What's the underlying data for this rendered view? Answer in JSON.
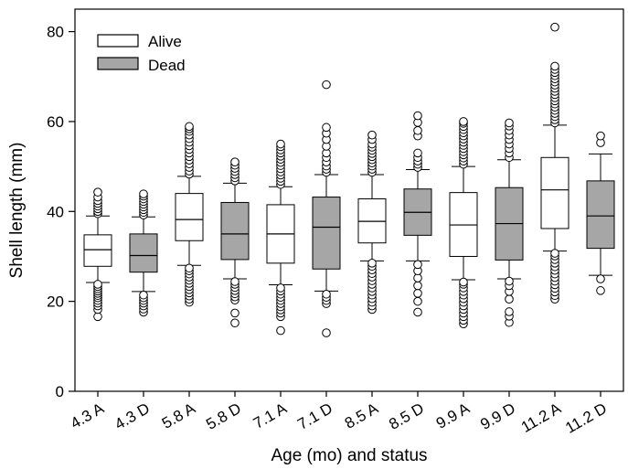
{
  "chart_data": {
    "type": "boxplot",
    "xlabel": "Age (mo) and status",
    "ylabel": "Shell length (mm)",
    "ylim": [
      0,
      85
    ],
    "yticks": [
      0,
      20,
      40,
      60,
      80
    ],
    "grid": false,
    "legend": {
      "placement": "top-left",
      "entries": [
        {
          "label": "Alive",
          "fill": "#ffffff"
        },
        {
          "label": "Dead",
          "fill": "#a6a6a6"
        }
      ]
    },
    "categories": [
      "4.3 A",
      "4.3 D",
      "5.8 A",
      "5.8 D",
      "7.1 A",
      "7.1 D",
      "8.5 A",
      "8.5 D",
      "9.9 A",
      "9.9 D",
      "11.2 A",
      "11.2 D"
    ],
    "boxes": [
      {
        "status": "Alive",
        "whisker_low": 24.2,
        "q1": 27.8,
        "median": 31.5,
        "q3": 34.8,
        "whisker_high": 39.0,
        "outliers": [
          16.6,
          18.2,
          19.0,
          19.6,
          20.2,
          20.8,
          21.3,
          21.8,
          22.3,
          22.8,
          23.3,
          23.8,
          39.5,
          40.0,
          40.6,
          41.2,
          41.8,
          42.4,
          43.2,
          44.3
        ]
      },
      {
        "status": "Dead",
        "whisker_low": 22.2,
        "q1": 26.5,
        "median": 30.2,
        "q3": 35.0,
        "whisker_high": 38.8,
        "outliers": [
          17.6,
          18.3,
          19.0,
          19.6,
          20.2,
          20.8,
          21.4,
          39.2,
          39.8,
          40.4,
          41.0,
          41.6,
          42.2,
          42.8,
          43.4,
          43.9
        ]
      },
      {
        "status": "Alive",
        "whisker_low": 28.0,
        "q1": 33.5,
        "median": 38.2,
        "q3": 44.0,
        "whisker_high": 47.8,
        "outliers": [
          19.8,
          20.5,
          21.2,
          21.9,
          22.6,
          23.3,
          24.0,
          24.7,
          25.4,
          26.1,
          26.8,
          27.4,
          48.3,
          49.0,
          49.8,
          50.6,
          51.4,
          52.2,
          53.0,
          53.8,
          54.6,
          55.4,
          56.2,
          57.0,
          57.8,
          58.4,
          58.9
        ]
      },
      {
        "status": "Dead",
        "whisker_low": 25.0,
        "q1": 29.3,
        "median": 35.0,
        "q3": 42.0,
        "whisker_high": 46.3,
        "outliers": [
          15.2,
          17.4,
          20.3,
          21.0,
          21.7,
          22.4,
          23.1,
          23.8,
          24.4,
          46.8,
          47.5,
          48.2,
          48.9,
          49.6,
          50.3,
          51.0
        ]
      },
      {
        "status": "Alive",
        "whisker_low": 23.7,
        "q1": 28.5,
        "median": 35.0,
        "q3": 41.5,
        "whisker_high": 45.5,
        "outliers": [
          13.5,
          16.6,
          17.4,
          18.1,
          18.8,
          19.5,
          20.2,
          20.9,
          21.6,
          22.3,
          23.0,
          46.0,
          46.7,
          47.4,
          48.1,
          48.8,
          49.5,
          50.2,
          50.9,
          51.6,
          52.3,
          53.0,
          53.7,
          54.4,
          55.0
        ]
      },
      {
        "status": "Dead",
        "whisker_low": 22.3,
        "q1": 27.2,
        "median": 36.5,
        "q3": 43.2,
        "whisker_high": 48.2,
        "outliers": [
          13.0,
          19.5,
          20.2,
          20.9,
          21.6,
          48.7,
          49.4,
          50.1,
          51.0,
          52.0,
          53.0,
          54.5,
          56.0,
          57.4,
          58.7,
          68.2
        ]
      },
      {
        "status": "Alive",
        "whisker_low": 29.0,
        "q1": 33.0,
        "median": 37.8,
        "q3": 42.8,
        "whisker_high": 48.2,
        "outliers": [
          18.2,
          19.0,
          19.8,
          20.6,
          21.4,
          22.2,
          23.0,
          23.8,
          24.6,
          25.4,
          26.2,
          27.0,
          27.8,
          28.5,
          48.7,
          49.4,
          50.1,
          50.8,
          51.5,
          52.2,
          52.9,
          53.6,
          54.3,
          55.0,
          56.0,
          57.0
        ]
      },
      {
        "status": "Dead",
        "whisker_low": 29.0,
        "q1": 34.7,
        "median": 39.8,
        "q3": 45.0,
        "whisker_high": 49.3,
        "outliers": [
          17.6,
          20.0,
          21.8,
          23.5,
          25.2,
          26.8,
          28.2,
          49.8,
          50.5,
          51.2,
          52.0,
          53.0,
          56.8,
          58.0,
          59.8,
          61.3
        ]
      },
      {
        "status": "Alive",
        "whisker_low": 24.8,
        "q1": 30.0,
        "median": 37.0,
        "q3": 44.2,
        "whisker_high": 50.0,
        "outliers": [
          15.0,
          15.8,
          16.6,
          17.4,
          18.2,
          19.0,
          19.8,
          20.6,
          21.4,
          22.2,
          23.0,
          23.8,
          24.3,
          50.5,
          51.2,
          51.9,
          52.6,
          53.3,
          54.0,
          54.7,
          55.4,
          56.1,
          56.8,
          57.5,
          58.2,
          58.9,
          59.6,
          60.0
        ]
      },
      {
        "status": "Dead",
        "whisker_low": 25.0,
        "q1": 29.2,
        "median": 37.3,
        "q3": 45.3,
        "whisker_high": 51.5,
        "outliers": [
          15.3,
          16.7,
          17.7,
          20.5,
          22.2,
          23.5,
          24.5,
          52.0,
          53.0,
          54.0,
          55.0,
          56.0,
          57.0,
          58.0,
          59.0,
          59.7
        ]
      },
      {
        "status": "Alive",
        "whisker_low": 31.2,
        "q1": 36.2,
        "median": 44.8,
        "q3": 52.0,
        "whisker_high": 59.2,
        "outliers": [
          20.5,
          21.3,
          22.1,
          22.9,
          23.7,
          24.5,
          25.3,
          26.1,
          26.9,
          27.7,
          28.5,
          29.3,
          30.1,
          30.7,
          59.7,
          60.4,
          61.1,
          61.8,
          62.5,
          63.2,
          63.9,
          64.6,
          65.3,
          66.0,
          66.7,
          67.4,
          68.1,
          68.8,
          69.5,
          70.2,
          70.9,
          71.6,
          72.3,
          81.0
        ]
      },
      {
        "status": "Dead",
        "whisker_low": 25.8,
        "q1": 31.8,
        "median": 39.0,
        "q3": 46.8,
        "whisker_high": 52.8,
        "outliers": [
          22.4,
          25.0,
          55.3,
          56.8
        ]
      }
    ]
  }
}
